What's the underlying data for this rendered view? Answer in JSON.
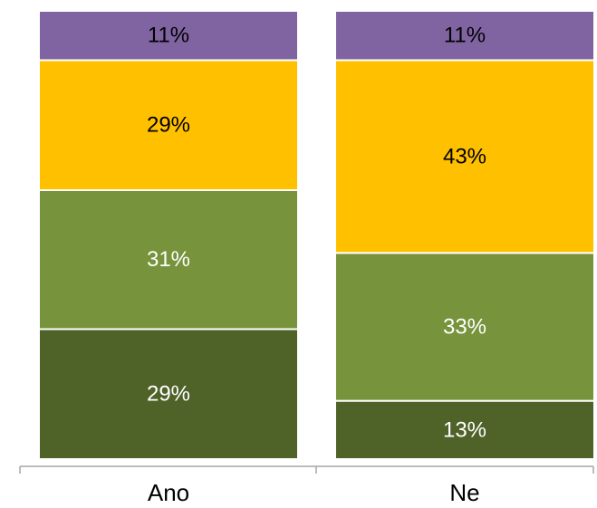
{
  "chart_data": {
    "type": "bar",
    "stacked": "percent",
    "categories": [
      "Ano",
      "Ne"
    ],
    "series": [
      {
        "color": "#4F6228",
        "values": [
          29,
          13
        ]
      },
      {
        "color": "#77933C",
        "values": [
          31,
          33
        ]
      },
      {
        "color": "#FFC000",
        "values": [
          29,
          43
        ]
      },
      {
        "color": "#8064A2",
        "values": [
          11,
          11
        ]
      }
    ],
    "value_labels": [
      [
        "29%",
        "13%"
      ],
      [
        "31%",
        "33%"
      ],
      [
        "29%",
        "43%"
      ],
      [
        "11%",
        "11%"
      ]
    ],
    "label_colors": [
      "#ffffff",
      "#ffffff",
      "#000000",
      "#000000"
    ],
    "ylim": [
      0,
      100
    ],
    "axis_color": "#A6A6A6",
    "grid": false,
    "legend": "none"
  }
}
